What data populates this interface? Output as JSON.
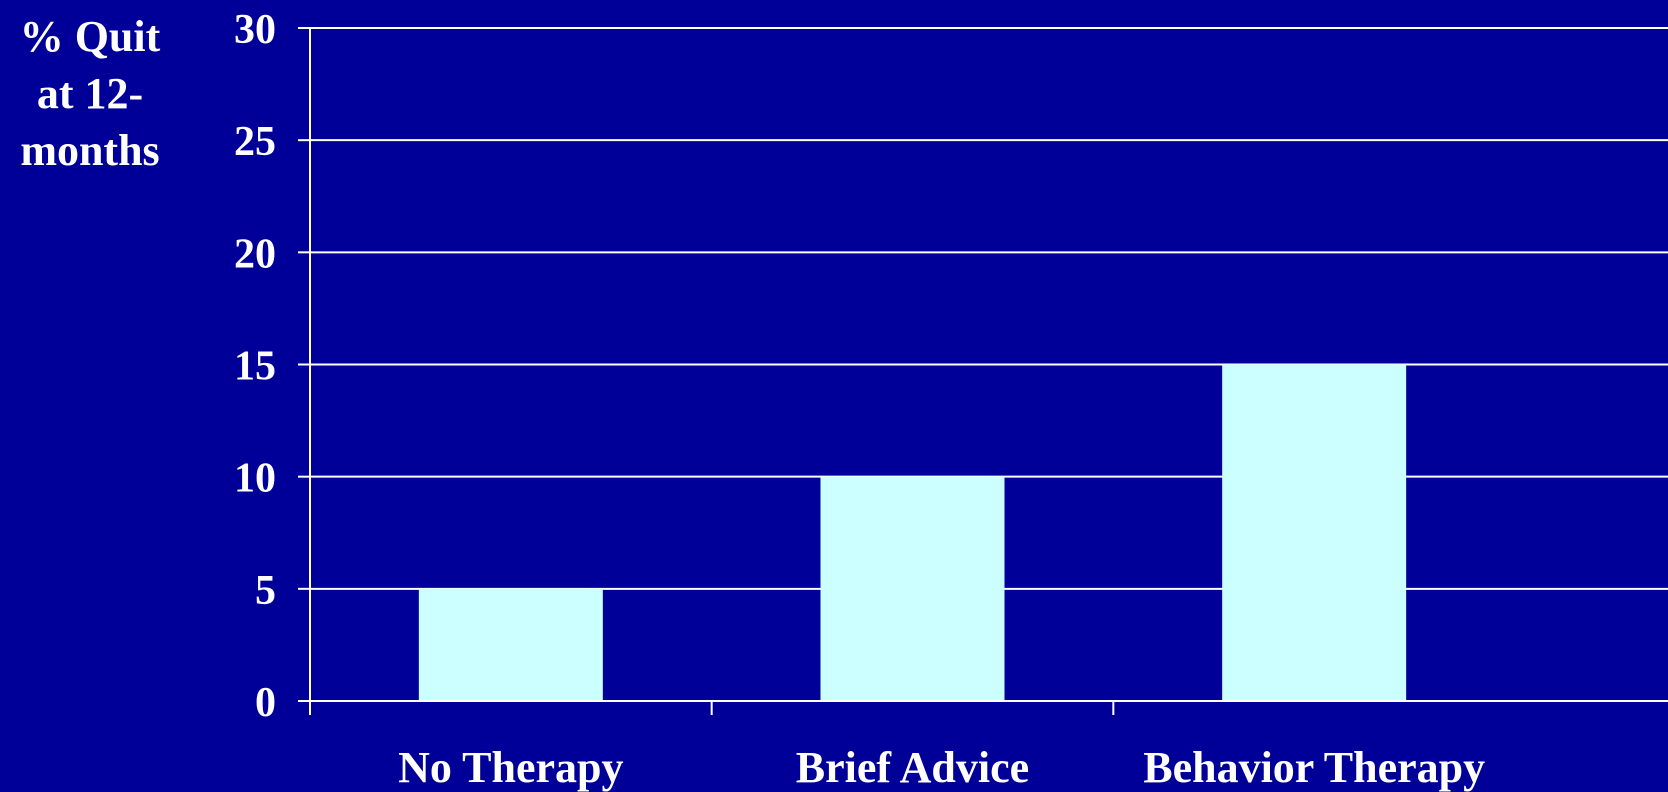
{
  "colors": {
    "background": "#000099",
    "bar": "#ccffff",
    "grid": "#ffffff",
    "text": "#ffffff"
  },
  "chart_data": {
    "type": "bar",
    "title": "",
    "xlabel": "",
    "ylabel": "% Quit\nat 12-\nmonths",
    "categories": [
      "No Therapy",
      "Brief Advice",
      "Behavior Therapy"
    ],
    "values": [
      5,
      10,
      15
    ],
    "ylim": [
      0,
      30
    ],
    "yticks": [
      0,
      5,
      10,
      15,
      20,
      25,
      30
    ],
    "grid": true,
    "legend": "none"
  }
}
